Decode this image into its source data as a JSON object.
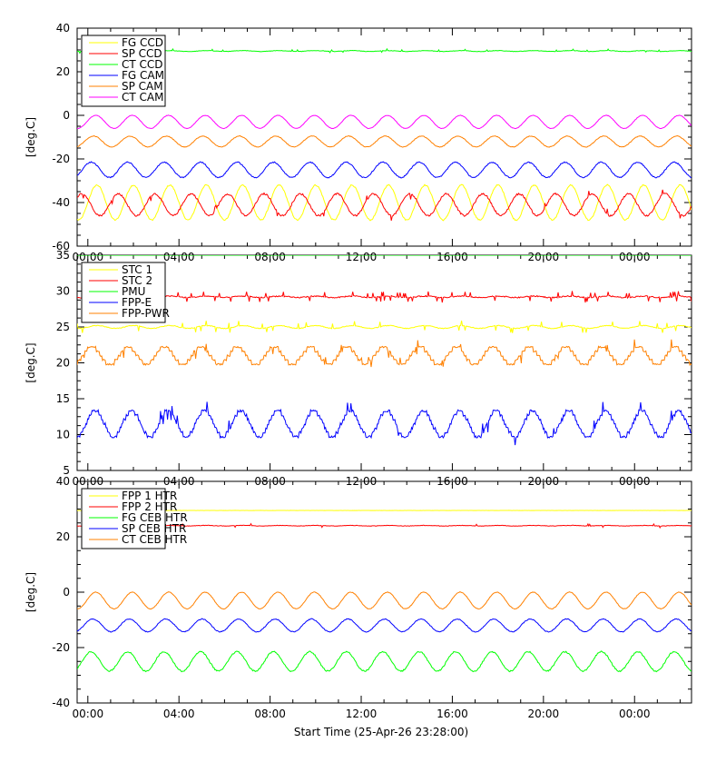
{
  "footer": {
    "start_time_label": "Start Time (25-Apr-26 23:28:00)"
  },
  "chart_data": [
    {
      "type": "line",
      "ylabel": "[deg.C]",
      "ylim": [
        -60,
        40
      ],
      "yticks": [
        -60,
        -40,
        -20,
        0,
        20,
        40
      ],
      "xticks": [
        "00:00",
        "04:00",
        "08:00",
        "12:00",
        "16:00",
        "20:00",
        "00:00"
      ],
      "xlim_hours": [
        -0.47,
        26.5
      ],
      "legend_position": "top-left",
      "series": [
        {
          "name": "FG CCD",
          "color": "#ffff00",
          "base": -40,
          "amp": 8,
          "period_hours": 1.6,
          "phase": 0.0,
          "noise": 0.6,
          "spikes": 0
        },
        {
          "name": "SP CCD",
          "color": "#ff0000",
          "base": -41,
          "amp": 5,
          "period_hours": 1.6,
          "phase": 2.6,
          "noise": 0.8,
          "spikes": 0.03
        },
        {
          "name": "CT CCD",
          "color": "#00ff00",
          "base": 29.5,
          "amp": 0.2,
          "period_hours": 1.6,
          "phase": 0.0,
          "noise": 0.2,
          "spikes": 0.04
        },
        {
          "name": "FG CAM",
          "color": "#0000ff",
          "base": -25,
          "amp": 3.5,
          "period_hours": 1.6,
          "phase": 1.0,
          "noise": 0.5,
          "spikes": 0
        },
        {
          "name": "SP CAM",
          "color": "#ff8000",
          "base": -12,
          "amp": 2.5,
          "period_hours": 1.6,
          "phase": 0.6,
          "noise": 0.3,
          "spikes": 0
        },
        {
          "name": "CT CAM",
          "color": "#ff00ff",
          "base": -3,
          "amp": 3,
          "period_hours": 1.6,
          "phase": 0.2,
          "noise": 0.2,
          "spikes": 0
        }
      ]
    },
    {
      "type": "line",
      "ylabel": "[deg.C]",
      "ylim": [
        5,
        35
      ],
      "yticks": [
        5,
        10,
        15,
        20,
        25,
        30,
        35
      ],
      "xticks": [
        "00:00",
        "04:00",
        "08:00",
        "12:00",
        "16:00",
        "20:00",
        "00:00"
      ],
      "xlim_hours": [
        -0.47,
        26.5
      ],
      "legend_position": "top-left",
      "series": [
        {
          "name": "STC 1",
          "color": "#ffff00",
          "base": 25,
          "amp": 0.2,
          "period_hours": 1.6,
          "phase": 0.0,
          "noise": 0.1,
          "spikes": 0.04
        },
        {
          "name": "STC 2",
          "color": "#ff0000",
          "base": 29.2,
          "amp": 0.1,
          "period_hours": 1.6,
          "phase": 0.0,
          "noise": 0.15,
          "spikes": 0.1
        },
        {
          "name": "PMU",
          "color": "#00ff00",
          "base": 35,
          "amp": 0,
          "period_hours": 1.6,
          "phase": 0.0,
          "noise": 0,
          "spikes": 0
        },
        {
          "name": "FPP-E",
          "color": "#0000ff",
          "base": 11.5,
          "amp": 1.8,
          "period_hours": 1.6,
          "phase": 0.3,
          "noise": 0.3,
          "spikes": 0.04,
          "step": 0.6
        },
        {
          "name": "FPP-PWR",
          "color": "#ff8000",
          "base": 21,
          "amp": 1.2,
          "period_hours": 1.6,
          "phase": 0.9,
          "noise": 0.2,
          "spikes": 0.03,
          "step": 0.6
        }
      ]
    },
    {
      "type": "line",
      "ylabel": "[deg.C]",
      "ylim": [
        -40,
        40
      ],
      "yticks": [
        -40,
        -20,
        0,
        20,
        40
      ],
      "xticks": [
        "00:00",
        "04:00",
        "08:00",
        "12:00",
        "16:00",
        "20:00",
        "00:00"
      ],
      "xlim_hours": [
        -0.47,
        26.5
      ],
      "legend_position": "top-left",
      "series": [
        {
          "name": "FPP 1 HTR",
          "color": "#ffff00",
          "base": 29.5,
          "amp": 0,
          "period_hours": 1.6,
          "phase": 0.0,
          "noise": 0.05,
          "spikes": 0
        },
        {
          "name": "FPP 2 HTR",
          "color": "#ff0000",
          "base": 24,
          "amp": 0.1,
          "period_hours": 1.6,
          "phase": 0.0,
          "noise": 0.15,
          "spikes": 0.02
        },
        {
          "name": "FG CEB HTR",
          "color": "#00ff00",
          "base": -25,
          "amp": 3.5,
          "period_hours": 1.6,
          "phase": 1.0,
          "noise": 0.5,
          "spikes": 0
        },
        {
          "name": "SP CEB HTR",
          "color": "#0000ff",
          "base": -12,
          "amp": 2.3,
          "period_hours": 1.6,
          "phase": 0.7,
          "noise": 0.3,
          "spikes": 0
        },
        {
          "name": "CT CEB HTR",
          "color": "#ff8000",
          "base": -3,
          "amp": 3,
          "period_hours": 1.6,
          "phase": 0.2,
          "noise": 0.2,
          "spikes": 0
        }
      ]
    }
  ]
}
